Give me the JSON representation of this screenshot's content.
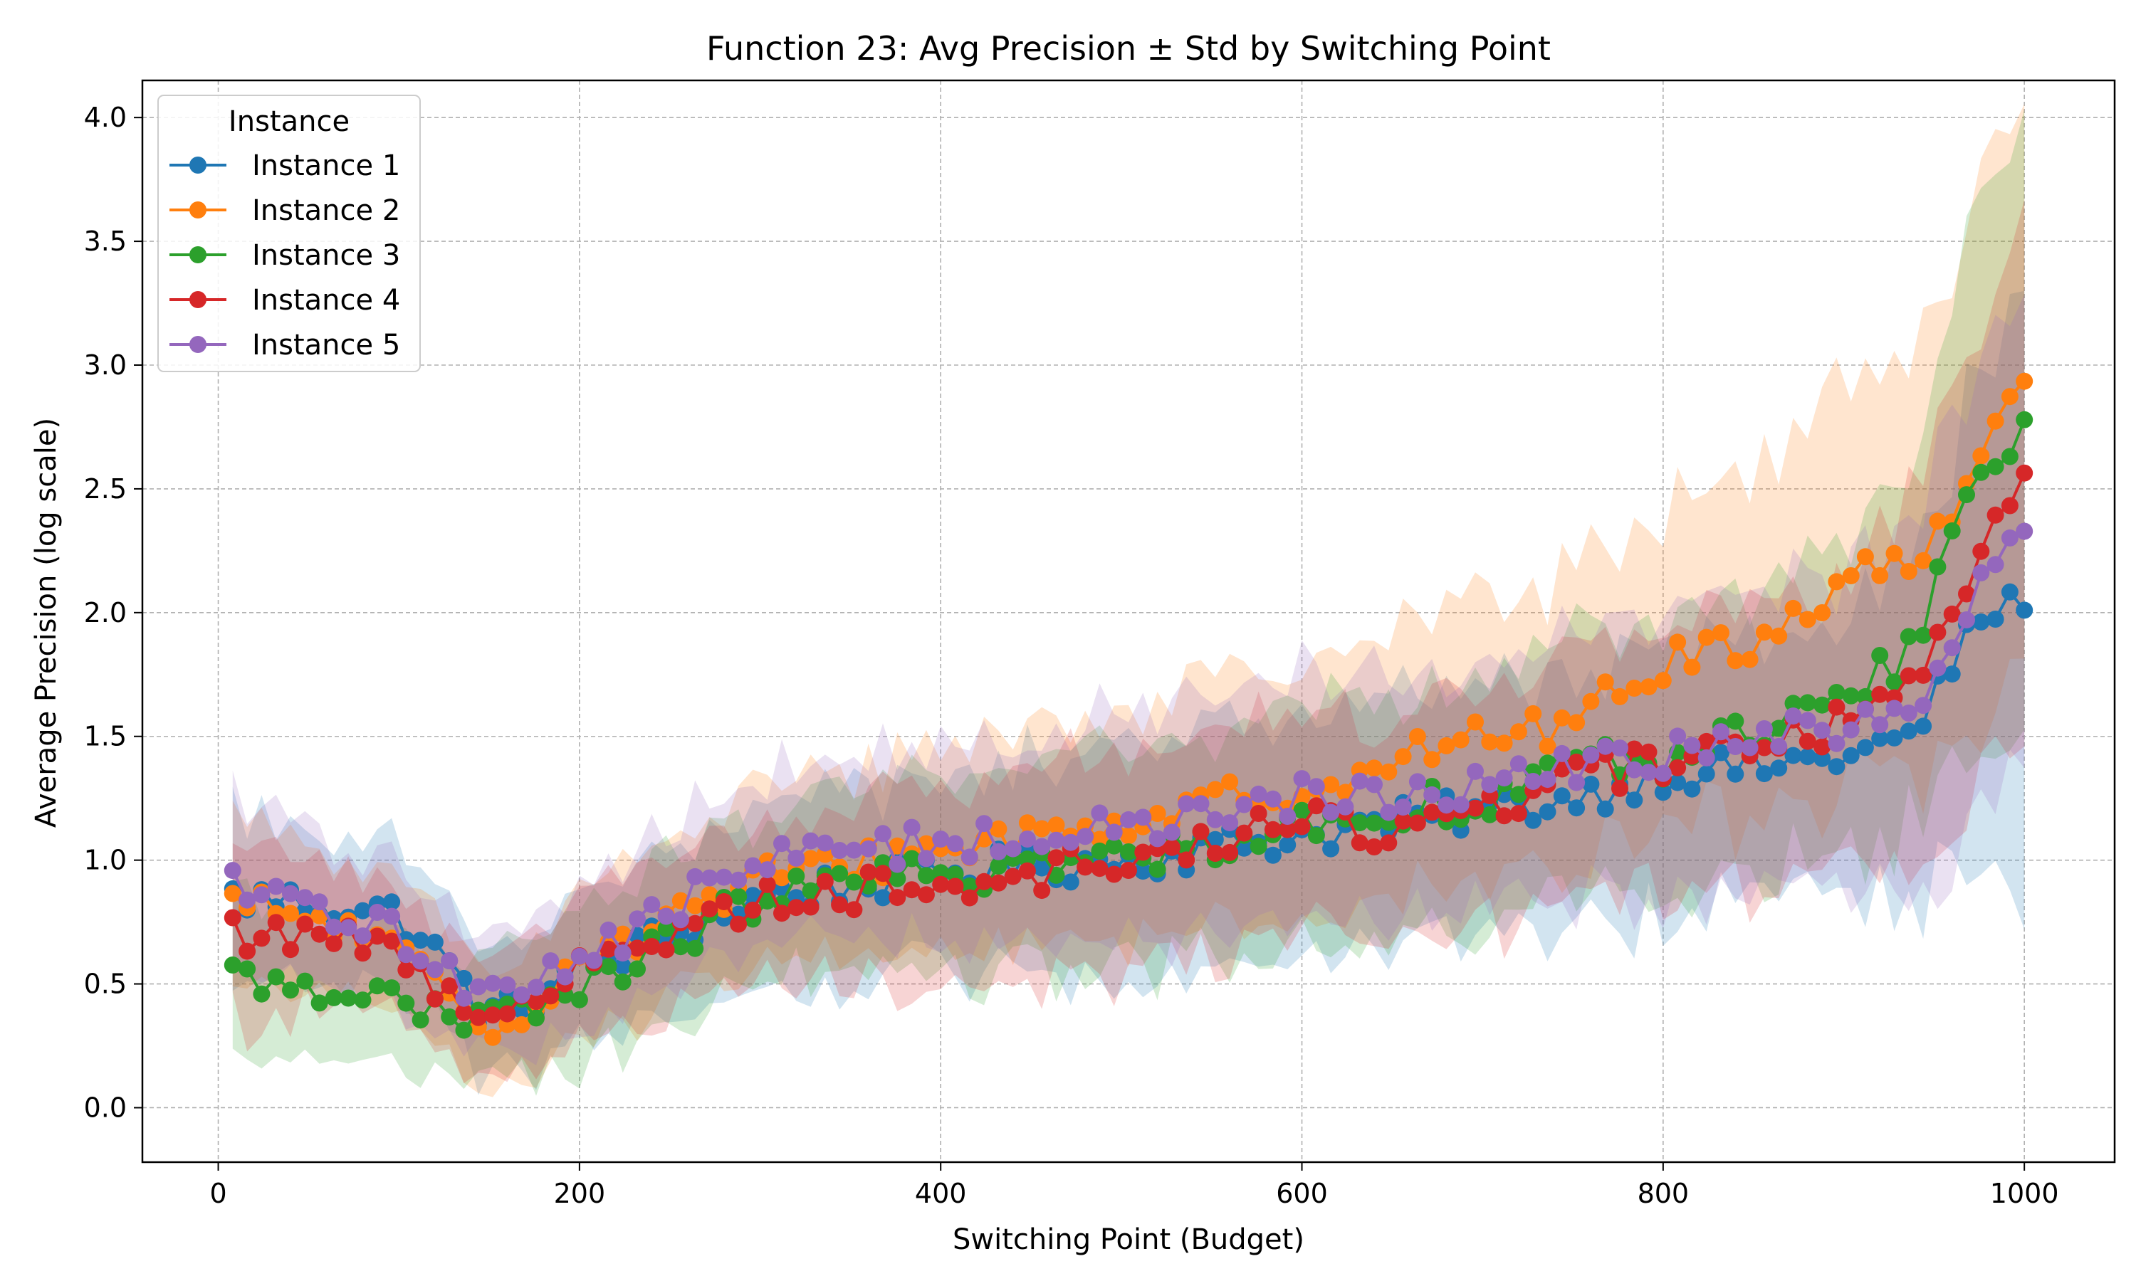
{
  "chart_data": {
    "type": "line",
    "title": "Function 23: Avg Precision ± Std by Switching Point",
    "xlabel": "Switching Point (Budget)",
    "ylabel": "Average Precision (log scale)",
    "xlim": [
      -42,
      1050
    ],
    "ylim": [
      -0.22,
      4.15
    ],
    "xticks": [
      0,
      200,
      400,
      600,
      800,
      1000
    ],
    "yticks": [
      0.0,
      0.5,
      1.0,
      1.5,
      2.0,
      2.5,
      3.0,
      3.5,
      4.0
    ],
    "xtick_labels": [
      "0",
      "200",
      "400",
      "600",
      "800",
      "1000"
    ],
    "ytick_labels": [
      "0.0",
      "0.5",
      "1.0",
      "1.5",
      "2.0",
      "2.5",
      "3.0",
      "3.5",
      "4.0"
    ],
    "grid": true,
    "legend": {
      "title": "Instance",
      "placement": "top-left"
    },
    "shaded_band": "mean ± std",
    "x_start": 8,
    "x_step": 8,
    "series": [
      {
        "name": "Instance 1",
        "color": "#1f77b4",
        "anchors_x": [
          8,
          60,
          100,
          130,
          150,
          200,
          300,
          400,
          500,
          600,
          650,
          700,
          750,
          800,
          860,
          900,
          940,
          960,
          980,
          1000
        ],
        "anchors_y": [
          0.85,
          0.82,
          0.78,
          0.55,
          0.35,
          0.55,
          0.85,
          0.95,
          1.0,
          1.1,
          1.15,
          1.2,
          1.25,
          1.35,
          1.38,
          1.42,
          1.5,
          1.8,
          2.0,
          2.06
        ],
        "std_anchors": [
          0.35,
          0.3,
          0.28,
          0.25,
          0.25,
          0.3,
          0.35,
          0.4,
          0.45,
          0.48,
          0.5,
          0.5,
          0.52,
          0.55,
          0.55,
          0.58,
          0.7,
          0.85,
          1.0,
          1.2
        ]
      },
      {
        "name": "Instance 2",
        "color": "#ff7f0e",
        "anchors_x": [
          8,
          60,
          100,
          130,
          150,
          200,
          300,
          400,
          500,
          600,
          650,
          700,
          750,
          800,
          860,
          900,
          940,
          960,
          980,
          1000
        ],
        "anchors_y": [
          0.82,
          0.75,
          0.62,
          0.42,
          0.3,
          0.6,
          0.92,
          1.05,
          1.15,
          1.3,
          1.4,
          1.5,
          1.55,
          1.8,
          1.9,
          2.15,
          2.2,
          2.4,
          2.78,
          2.92
        ],
        "std_anchors": [
          0.35,
          0.3,
          0.28,
          0.25,
          0.25,
          0.3,
          0.35,
          0.4,
          0.45,
          0.48,
          0.55,
          0.55,
          0.6,
          0.65,
          0.7,
          0.8,
          0.9,
          1.0,
          1.1,
          1.2
        ]
      },
      {
        "name": "Instance 3",
        "color": "#2ca02c",
        "anchors_x": [
          8,
          60,
          100,
          130,
          150,
          200,
          300,
          400,
          500,
          600,
          650,
          700,
          750,
          800,
          860,
          900,
          940,
          960,
          980,
          1000
        ],
        "anchors_y": [
          0.52,
          0.5,
          0.42,
          0.33,
          0.35,
          0.48,
          0.85,
          0.95,
          1.0,
          1.15,
          1.2,
          1.25,
          1.38,
          1.4,
          1.55,
          1.65,
          1.85,
          2.35,
          2.6,
          2.7
        ],
        "std_anchors": [
          0.35,
          0.3,
          0.28,
          0.25,
          0.25,
          0.3,
          0.35,
          0.4,
          0.45,
          0.48,
          0.5,
          0.5,
          0.52,
          0.55,
          0.58,
          0.62,
          0.75,
          0.9,
          1.0,
          1.05
        ]
      },
      {
        "name": "Instance 4",
        "color": "#d62728",
        "anchors_x": [
          8,
          60,
          100,
          130,
          150,
          200,
          300,
          400,
          500,
          600,
          650,
          700,
          750,
          800,
          860,
          900,
          940,
          960,
          980,
          1000
        ],
        "anchors_y": [
          0.7,
          0.72,
          0.6,
          0.45,
          0.4,
          0.55,
          0.85,
          0.9,
          1.0,
          1.15,
          1.12,
          1.22,
          1.32,
          1.4,
          1.48,
          1.55,
          1.75,
          2.0,
          2.38,
          2.58
        ],
        "std_anchors": [
          0.35,
          0.3,
          0.28,
          0.25,
          0.25,
          0.3,
          0.35,
          0.4,
          0.45,
          0.48,
          0.5,
          0.5,
          0.52,
          0.55,
          0.58,
          0.62,
          0.75,
          0.9,
          1.0,
          1.05
        ]
      },
      {
        "name": "Instance 5",
        "color": "#9467bd",
        "anchors_x": [
          8,
          60,
          100,
          130,
          150,
          200,
          300,
          400,
          500,
          600,
          650,
          700,
          750,
          800,
          860,
          900,
          940,
          960,
          980,
          1000
        ],
        "anchors_y": [
          0.88,
          0.78,
          0.7,
          0.55,
          0.45,
          0.6,
          1.0,
          1.08,
          1.12,
          1.25,
          1.25,
          1.32,
          1.36,
          1.42,
          1.5,
          1.52,
          1.65,
          1.85,
          2.2,
          2.28
        ],
        "std_anchors": [
          0.35,
          0.3,
          0.28,
          0.25,
          0.25,
          0.3,
          0.35,
          0.4,
          0.45,
          0.48,
          0.5,
          0.5,
          0.52,
          0.55,
          0.58,
          0.62,
          0.75,
          0.9,
          1.0,
          1.05
        ]
      }
    ]
  },
  "colors": {
    "grid": "#b0b0b0",
    "axes": "#000000",
    "legend_border": "#cccccc"
  }
}
